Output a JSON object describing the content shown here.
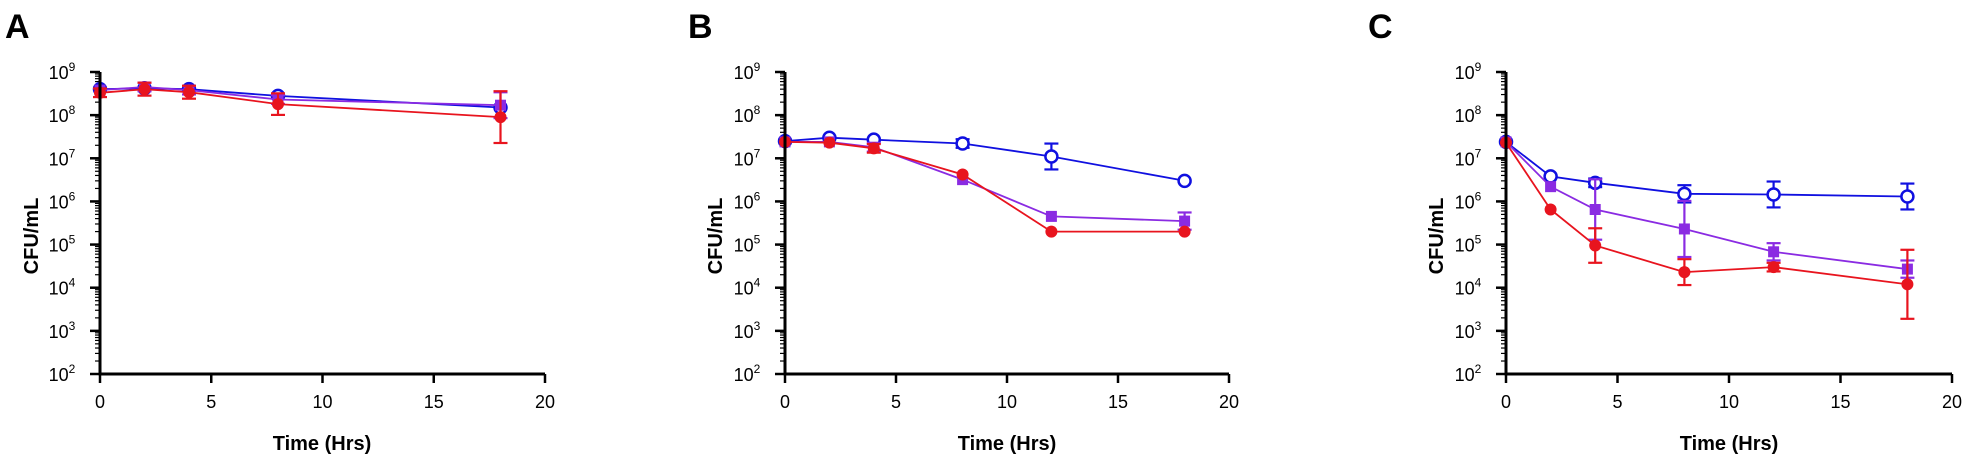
{
  "chart_data": [
    {
      "type": "line",
      "panel_label": "A",
      "xlabel": "Time (Hrs)",
      "ylabel": "CFU/mL",
      "y_scale": "log",
      "xlim": [
        0,
        20
      ],
      "xticks": [
        0,
        5,
        10,
        15,
        20
      ],
      "ylim": [
        100,
        1000000000
      ],
      "yticks": [
        2,
        3,
        4,
        5,
        6,
        7,
        8,
        9
      ],
      "y_tick_base": "10",
      "series": [
        {
          "name": "open-circle",
          "color": "#1010e0",
          "marker": "open-circle",
          "x": [
            0,
            2,
            4,
            8,
            18
          ],
          "y": [
            400000000,
            420000000,
            400000000,
            280000000,
            150000000
          ],
          "err": [
            0,
            0,
            0,
            0,
            0
          ]
        },
        {
          "name": "square",
          "color": "#8a2be2",
          "marker": "square",
          "x": [
            0,
            2,
            4,
            8,
            18
          ],
          "y": [
            380000000,
            450000000,
            380000000,
            230000000,
            170000000
          ],
          "err": [
            0,
            0.1,
            0.1,
            0.1,
            0.3
          ]
        },
        {
          "name": "filled-circle",
          "color": "#e8141e",
          "marker": "filled-circle",
          "x": [
            0,
            2,
            4,
            8,
            18
          ],
          "y": [
            330000000,
            400000000,
            340000000,
            180000000,
            90000000
          ],
          "err": [
            0.1,
            0.15,
            0.15,
            0.25,
            0.6
          ]
        }
      ]
    },
    {
      "type": "line",
      "panel_label": "B",
      "xlabel": "Time (Hrs)",
      "ylabel": "CFU/mL",
      "y_scale": "log",
      "xlim": [
        0,
        20
      ],
      "xticks": [
        0,
        5,
        10,
        15,
        20
      ],
      "ylim": [
        100,
        1000000000
      ],
      "yticks": [
        2,
        3,
        4,
        5,
        6,
        7,
        8,
        9
      ],
      "y_tick_base": "10",
      "series": [
        {
          "name": "open-circle",
          "color": "#1010e0",
          "marker": "open-circle",
          "x": [
            0,
            2,
            4,
            8,
            12,
            18
          ],
          "y": [
            25000000,
            30000000,
            27000000,
            22000000,
            11000000,
            3000000
          ],
          "err": [
            0,
            0,
            0,
            0.1,
            0.3,
            0
          ]
        },
        {
          "name": "square",
          "color": "#8a2be2",
          "marker": "square",
          "x": [
            0,
            2,
            4,
            8,
            12,
            18
          ],
          "y": [
            24000000,
            24000000,
            18000000,
            3200000,
            450000,
            350000
          ],
          "err": [
            0,
            0,
            0.1,
            0,
            0,
            0.2
          ]
        },
        {
          "name": "filled-circle",
          "color": "#e8141e",
          "marker": "filled-circle",
          "x": [
            0,
            2,
            4,
            8,
            12,
            18
          ],
          "y": [
            24000000,
            23000000,
            17000000,
            4200000,
            200000,
            200000
          ],
          "err": [
            0,
            0,
            0.1,
            0,
            0,
            0
          ]
        }
      ]
    },
    {
      "type": "line",
      "panel_label": "C",
      "xlabel": "Time (Hrs)",
      "ylabel": "CFU/mL",
      "y_scale": "log",
      "xlim": [
        0,
        20
      ],
      "xticks": [
        0,
        5,
        10,
        15,
        20
      ],
      "ylim": [
        100,
        1000000000
      ],
      "yticks": [
        2,
        3,
        4,
        5,
        6,
        7,
        8,
        9
      ],
      "y_tick_base": "10",
      "series": [
        {
          "name": "open-circle",
          "color": "#1010e0",
          "marker": "open-circle",
          "x": [
            0,
            2,
            4,
            8,
            12,
            18
          ],
          "y": [
            24000000,
            3800000,
            2700000,
            1500000,
            1450000,
            1300000
          ],
          "err": [
            0,
            0,
            0.1,
            0.2,
            0.3,
            0.3
          ]
        },
        {
          "name": "square",
          "color": "#8a2be2",
          "marker": "square",
          "x": [
            0,
            2,
            4,
            8,
            12,
            18
          ],
          "y": [
            24000000,
            2200000,
            650000,
            230000,
            68000,
            27000
          ],
          "err": [
            0,
            0,
            0.7,
            0.65,
            0.2,
            0.2
          ]
        },
        {
          "name": "filled-circle",
          "color": "#e8141e",
          "marker": "filled-circle",
          "x": [
            0,
            2,
            4,
            8,
            12,
            18
          ],
          "y": [
            23000000,
            650000,
            95000,
            23000,
            30000,
            12000
          ],
          "err": [
            0,
            0,
            0.4,
            0.3,
            0.1,
            0.8
          ]
        }
      ]
    }
  ]
}
